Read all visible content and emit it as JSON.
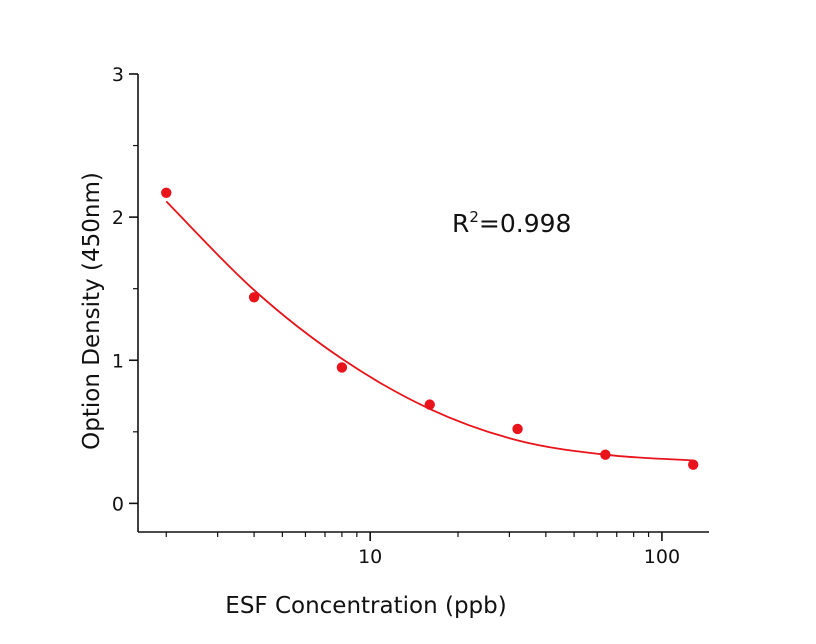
{
  "chart_data": {
    "type": "scatter",
    "xlabel": "ESF Concentration (ppb)",
    "ylabel": "Option Density (450nm)",
    "x_scale": "log",
    "xlim": [
      1.6,
      145
    ],
    "ylim": [
      -0.2,
      3
    ],
    "x_major_ticks": [
      10,
      100
    ],
    "x_tick_labels": [
      "10",
      "100"
    ],
    "y_major_ticks": [
      0,
      1,
      2,
      3
    ],
    "y_tick_labels": [
      "0",
      "1",
      "2",
      "3"
    ],
    "grid": false,
    "legend": "none",
    "series": [
      {
        "marker": "circle",
        "color": "#e8131b",
        "x": [
          2,
          4,
          8,
          16,
          32,
          64,
          128
        ],
        "y": [
          2.17,
          1.44,
          0.95,
          0.69,
          0.52,
          0.34,
          0.27
        ]
      }
    ],
    "fit_curve": {
      "color": "#e8131b",
      "x": [
        2,
        4,
        8,
        16,
        32,
        64,
        128
      ],
      "y": [
        2.11,
        1.49,
        1.01,
        0.66,
        0.44,
        0.34,
        0.3
      ]
    },
    "annotation": {
      "base": "R",
      "superscript": "2",
      "value": "=0.998"
    }
  }
}
